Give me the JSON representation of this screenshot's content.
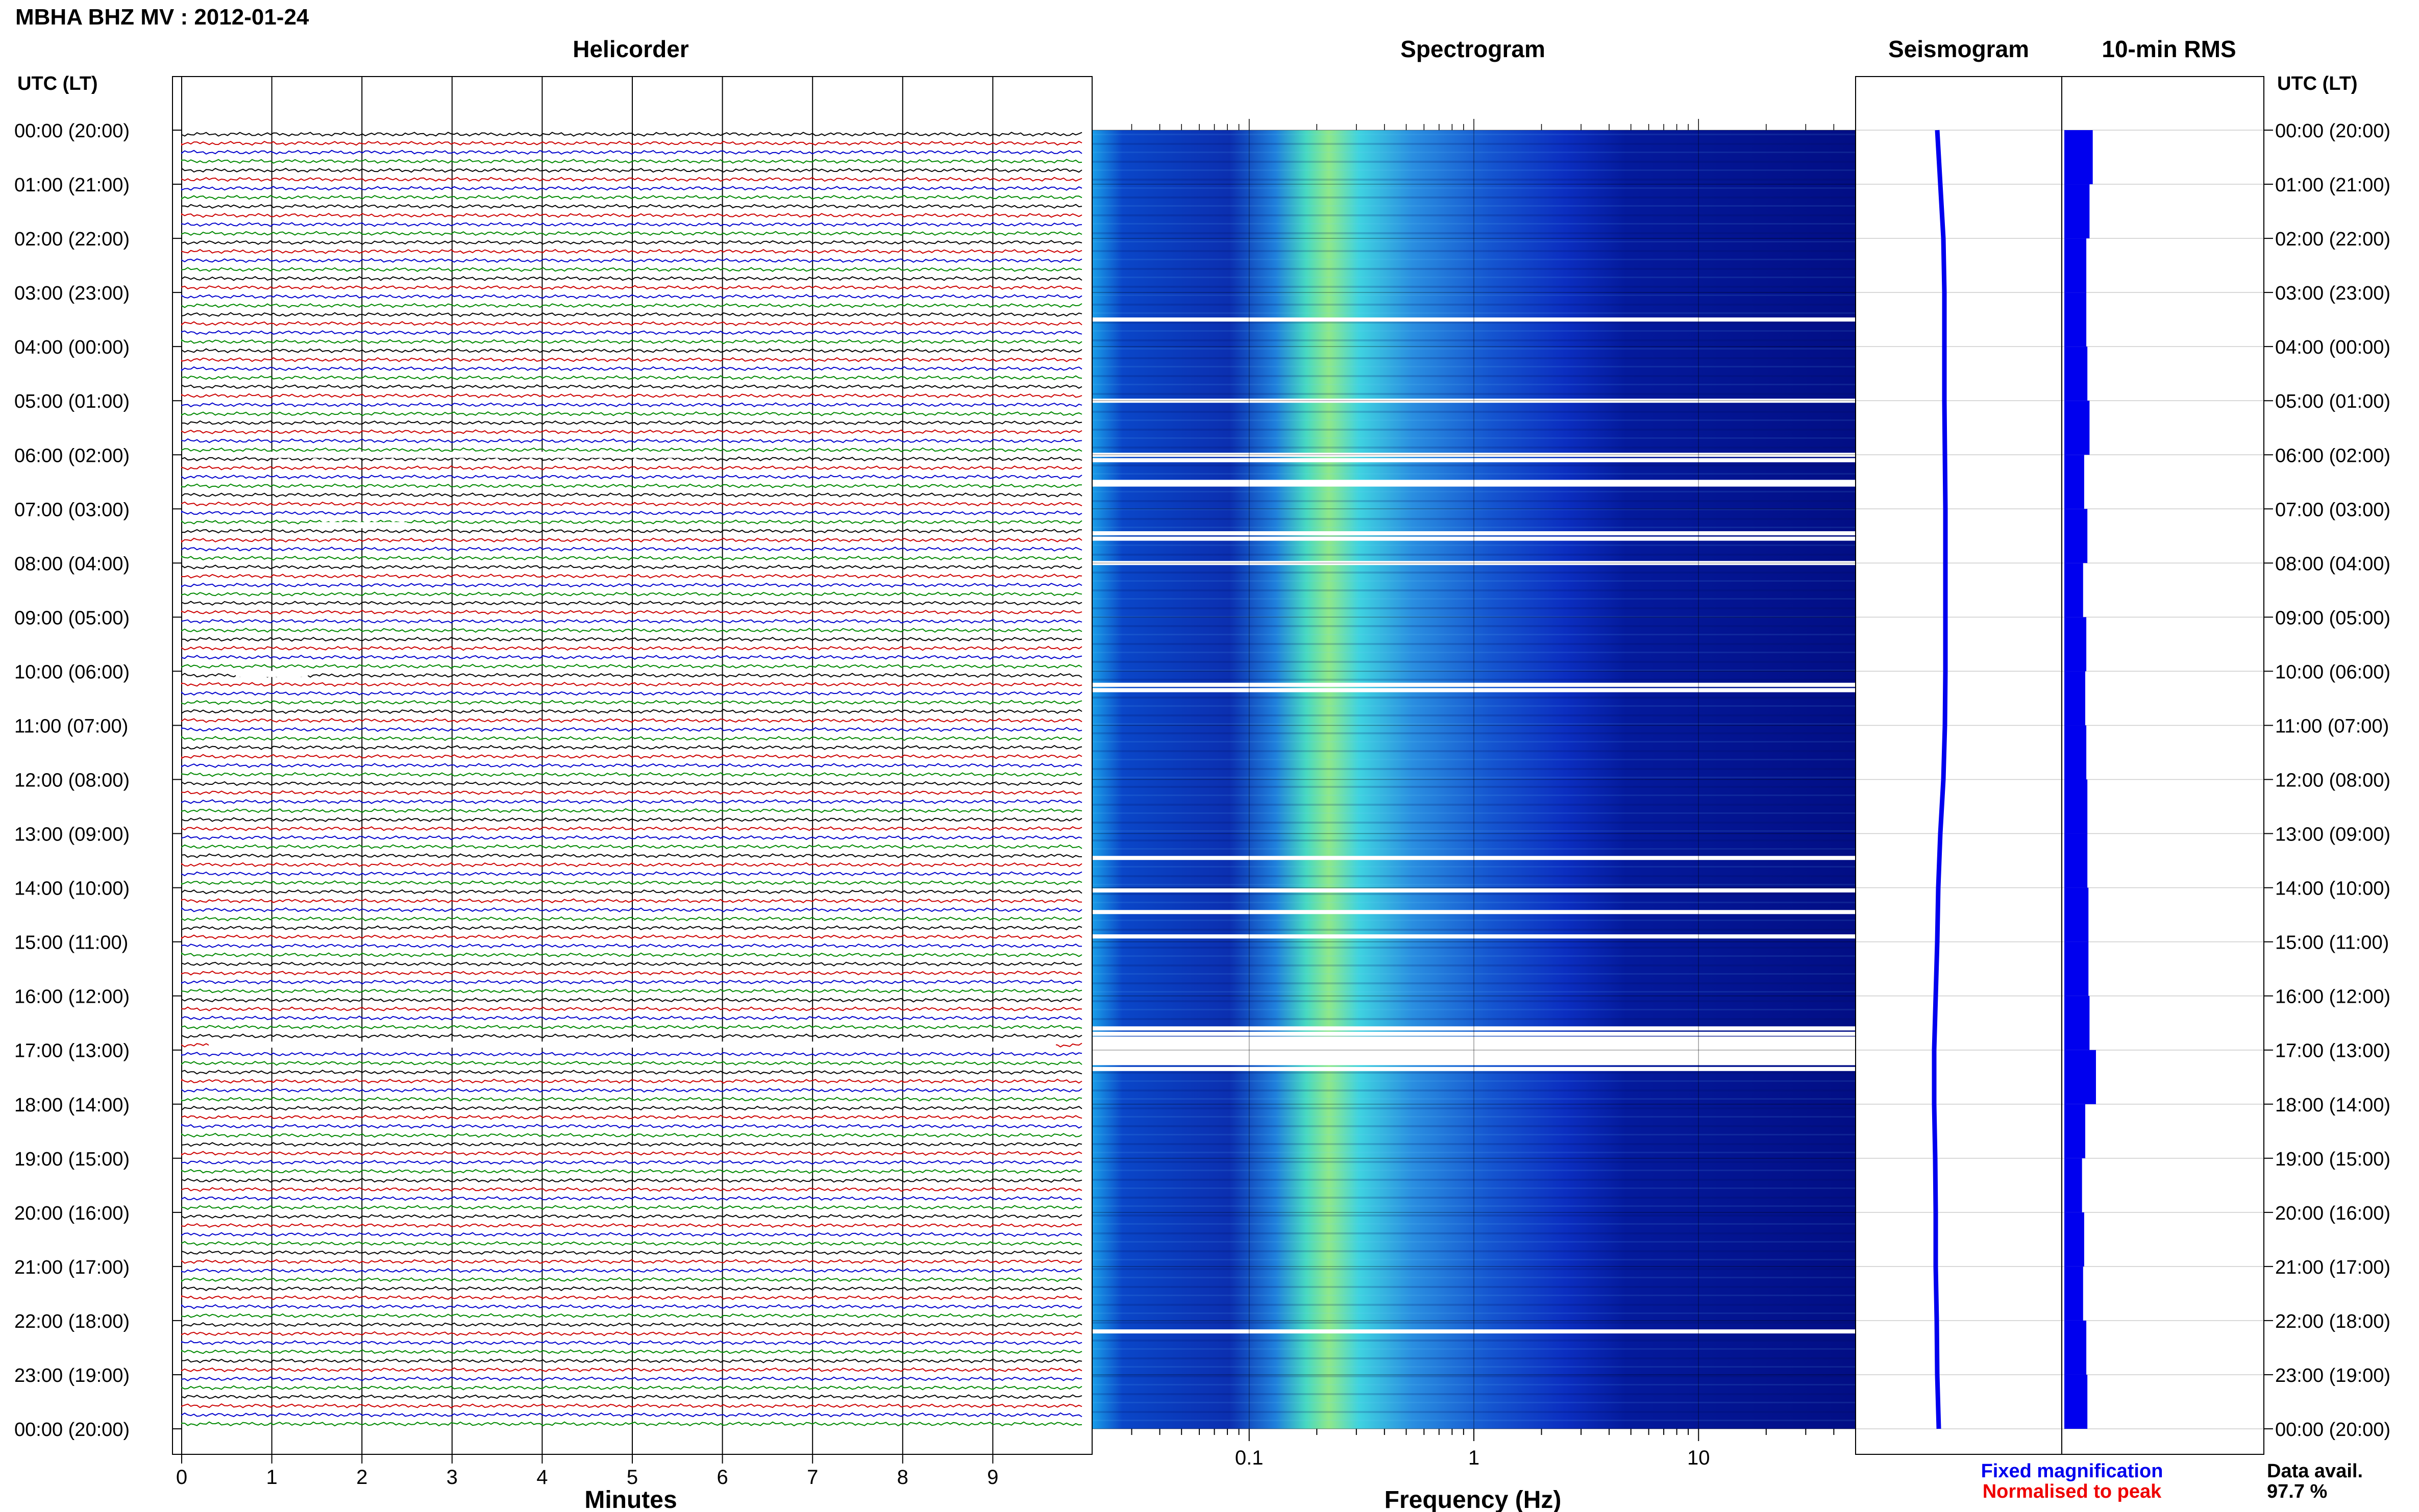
{
  "header": {
    "title": "MBHA BHZ MV : 2012-01-24"
  },
  "panels": {
    "helicorder": "Helicorder",
    "spectrogram": "Spectrogram",
    "seismogram": "Seismogram",
    "rms": "10-min RMS"
  },
  "axes": {
    "left_label": "UTC (LT)",
    "right_label": "UTC (LT)",
    "minutes_label": "Minutes",
    "frequency_label": "Frequency (Hz)",
    "minute_ticks": [
      "0",
      "1",
      "2",
      "3",
      "4",
      "5",
      "6",
      "7",
      "8",
      "9"
    ],
    "freq_ticks": [
      "0.1",
      "1",
      "10"
    ],
    "hour_labels": [
      "00:00 (20:00)",
      "01:00 (21:00)",
      "02:00 (22:00)",
      "03:00 (23:00)",
      "04:00 (00:00)",
      "05:00 (01:00)",
      "06:00 (02:00)",
      "07:00 (03:00)",
      "08:00 (04:00)",
      "09:00 (05:00)",
      "10:00 (06:00)",
      "11:00 (07:00)",
      "12:00 (08:00)",
      "13:00 (09:00)",
      "14:00 (10:00)",
      "15:00 (11:00)",
      "16:00 (12:00)",
      "17:00 (13:00)",
      "18:00 (14:00)",
      "19:00 (15:00)",
      "20:00 (16:00)",
      "21:00 (17:00)",
      "22:00 (18:00)",
      "23:00 (19:00)",
      "00:00 (20:00)"
    ]
  },
  "legend": {
    "fixed": "Fixed magnification",
    "normalised": "Normalised to peak",
    "data_avail_label": "Data avail.",
    "data_avail_value": "97.7 %"
  },
  "colors": {
    "trace_cycle": [
      "#000000",
      "#cc0000",
      "#0000cc",
      "#008800"
    ],
    "fixed": "#0000ee",
    "normalised": "#ee0000",
    "seismogram": "#0000ee",
    "rms": "#0000ee"
  },
  "chart_data": {
    "type": "heatmap",
    "title": "MBHA BHZ MV : 2012-01-24",
    "xlabel": "Minutes",
    "ylabel": "UTC (LT)",
    "helicorder": {
      "minutes_per_line": 10,
      "lines_per_hour": 6,
      "hours": 24,
      "xlim": [
        0,
        10
      ]
    },
    "spectrogram": {
      "xlabel": "Frequency (Hz)",
      "xscale": "log",
      "xlim": [
        0.02,
        50
      ],
      "dominant_band_hz": [
        0.2,
        0.4
      ],
      "data_gaps_utc_hours": [
        3.5,
        5.0,
        6.0,
        6.1,
        6.5,
        6.55,
        7.45,
        7.55,
        8.0,
        10.25,
        10.35,
        13.45,
        14.05,
        14.45,
        14.9,
        16.6,
        16.7,
        16.8,
        16.9,
        17.05,
        17.15,
        17.35,
        22.2
      ]
    },
    "seismogram": {
      "x_offset_hourly": [
        0.3,
        0.36,
        0.42,
        0.44,
        0.44,
        0.44,
        0.45,
        0.46,
        0.46,
        0.46,
        0.46,
        0.45,
        0.42,
        0.36,
        0.32,
        0.3,
        0.27,
        0.24,
        0.24,
        0.26,
        0.27,
        0.27,
        0.29,
        0.3,
        0.33
      ]
    },
    "rms": {
      "relative_hourly": [
        0.85,
        0.7,
        0.55,
        0.55,
        0.6,
        0.7,
        0.45,
        0.6,
        0.4,
        0.55,
        0.5,
        0.55,
        0.6,
        0.6,
        0.65,
        0.65,
        0.7,
        1.0,
        0.5,
        0.35,
        0.45,
        0.4,
        0.55,
        0.6,
        0.4
      ]
    },
    "data_availability_percent": 97.7
  }
}
